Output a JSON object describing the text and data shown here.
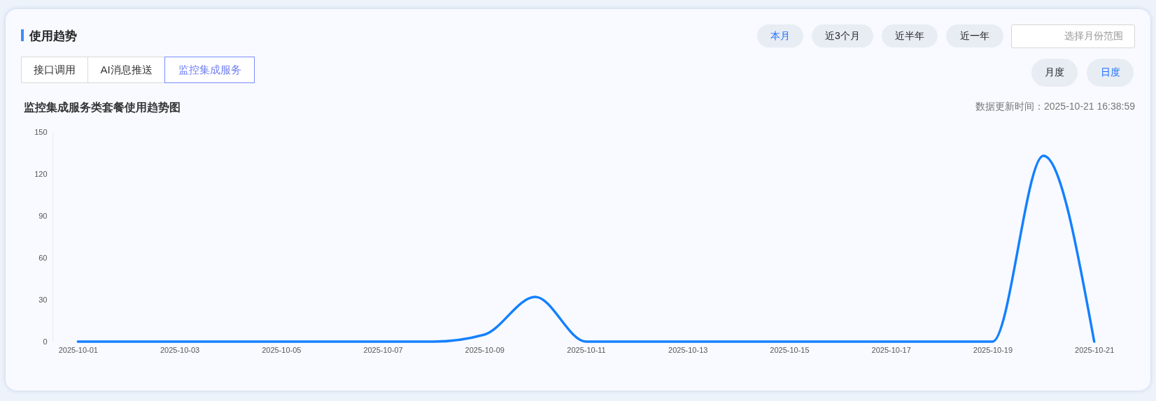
{
  "chart_data": {
    "type": "line",
    "title": "使用趋势",
    "subtitle": "监控集成服务类套餐使用趋势图",
    "annotations": [
      "本月",
      "近3个月",
      "近半年",
      "近一年",
      "选择月份范围",
      "月度",
      "日度",
      "接口调用",
      "AI消息推送",
      "监控集成服务",
      "数据更新时间：2025-10-21 16:38:59"
    ],
    "categories": [
      "2025-10-01",
      null,
      "2025-10-03",
      null,
      "2025-10-05",
      null,
      "2025-10-07",
      null,
      "2025-10-09",
      null,
      "2025-10-11",
      null,
      "2025-10-13",
      null,
      "2025-10-15",
      null,
      "2025-10-17",
      null,
      "2025-10-19",
      null,
      "2025-10-21"
    ],
    "series": [
      {
        "color": "#1480ff",
        "values": [
          0,
          0,
          0,
          0,
          0,
          0,
          0,
          0,
          5,
          32,
          0,
          0,
          0,
          0,
          0,
          0,
          0,
          0,
          0,
          133,
          0
        ]
      }
    ],
    "ylim": [
      0,
      150
    ],
    "yticks": [
      0,
      30,
      60,
      90,
      120,
      150
    ],
    "grid": false
  }
}
